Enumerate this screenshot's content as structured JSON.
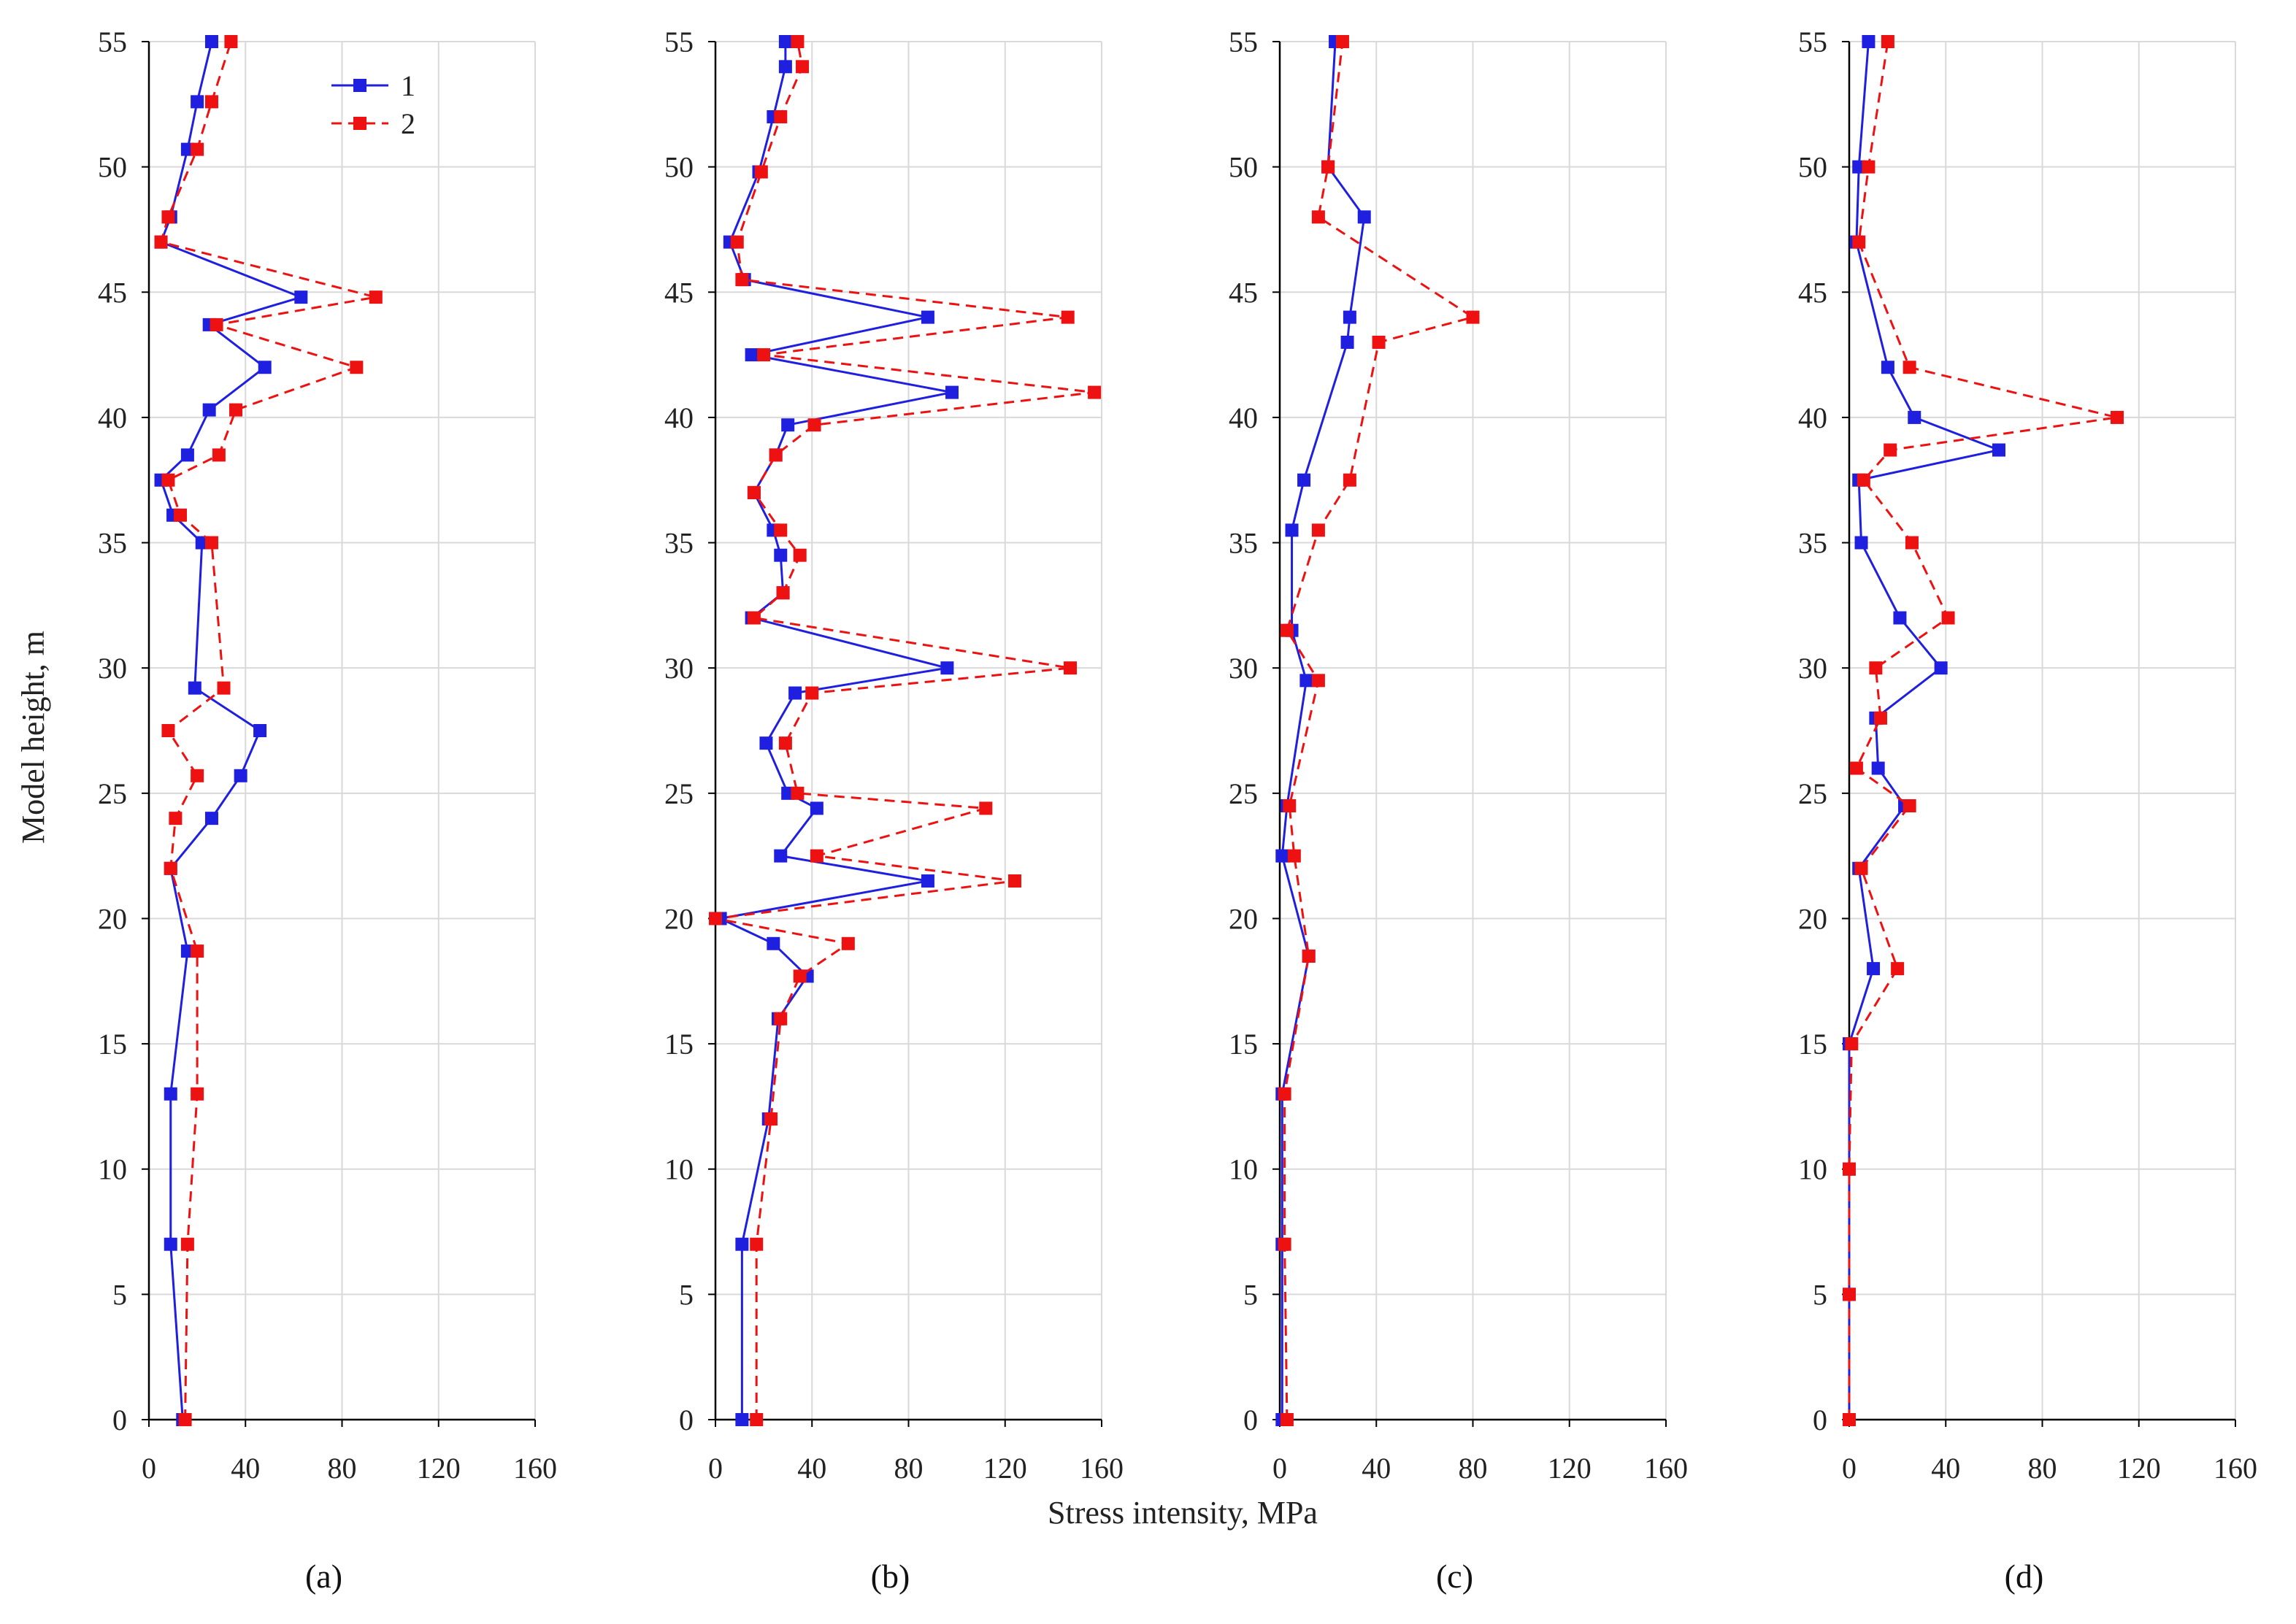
{
  "figure": {
    "ylabel": "Model height, m",
    "xlabel": "Stress intensity, MPa",
    "colors": {
      "series1": "#1f1fe0",
      "series2": "#ee1111",
      "grid": "#d9d9d9",
      "axis": "#000000"
    }
  },
  "chart_data": [
    {
      "type": "line",
      "panel": "(a)",
      "xlim": [
        0,
        160
      ],
      "ylim": [
        0,
        55
      ],
      "xticks": [
        "0",
        "40",
        "80",
        "120",
        "160"
      ],
      "yticks": [
        "0",
        "5",
        "10",
        "15",
        "20",
        "25",
        "30",
        "35",
        "40",
        "45",
        "50",
        "55"
      ],
      "grid": true,
      "legend": {
        "position": "top-right",
        "entries": [
          "1",
          "2"
        ]
      },
      "series": [
        {
          "name": "1",
          "style": "solid",
          "points": [
            [
              14,
              0
            ],
            [
              9,
              7
            ],
            [
              9,
              13
            ],
            [
              16,
              18.7
            ],
            [
              9,
              22
            ],
            [
              26,
              24
            ],
            [
              38,
              25.7
            ],
            [
              46,
              27.5
            ],
            [
              19,
              29.2
            ],
            [
              22,
              35
            ],
            [
              10,
              36.1
            ],
            [
              5,
              37.5
            ],
            [
              16,
              38.5
            ],
            [
              25,
              40.3
            ],
            [
              48,
              42
            ],
            [
              25,
              43.7
            ],
            [
              63,
              44.8
            ],
            [
              5,
              47
            ],
            [
              9,
              48
            ],
            [
              16,
              50.7
            ],
            [
              20,
              52.6
            ],
            [
              26,
              55
            ]
          ]
        },
        {
          "name": "2",
          "style": "dashed",
          "points": [
            [
              15,
              0
            ],
            [
              16,
              7
            ],
            [
              20,
              13
            ],
            [
              20,
              18.7
            ],
            [
              9,
              22
            ],
            [
              11,
              24
            ],
            [
              20,
              25.7
            ],
            [
              8,
              27.5
            ],
            [
              31,
              29.2
            ],
            [
              26,
              35
            ],
            [
              13,
              36.1
            ],
            [
              8,
              37.5
            ],
            [
              29,
              38.5
            ],
            [
              36,
              40.3
            ],
            [
              86,
              42
            ],
            [
              28,
              43.7
            ],
            [
              94,
              44.8
            ],
            [
              5,
              47
            ],
            [
              8,
              48
            ],
            [
              20,
              50.7
            ],
            [
              26,
              52.6
            ],
            [
              34,
              55
            ]
          ]
        }
      ]
    },
    {
      "type": "line",
      "panel": "(b)",
      "xlim": [
        0,
        160
      ],
      "ylim": [
        0,
        55
      ],
      "xticks": [
        "0",
        "40",
        "80",
        "120",
        "160"
      ],
      "yticks": [
        "0",
        "5",
        "10",
        "15",
        "20",
        "25",
        "30",
        "35",
        "40",
        "45",
        "50",
        "55"
      ],
      "grid": true,
      "series": [
        {
          "name": "1",
          "style": "solid",
          "points": [
            [
              11,
              0
            ],
            [
              11,
              7
            ],
            [
              22,
              12
            ],
            [
              26,
              16
            ],
            [
              38,
              17.7
            ],
            [
              24,
              19
            ],
            [
              2,
              20
            ],
            [
              88,
              21.5
            ],
            [
              27,
              22.5
            ],
            [
              42,
              24.4
            ],
            [
              30,
              25
            ],
            [
              21,
              27
            ],
            [
              33,
              29
            ],
            [
              96,
              30
            ],
            [
              15,
              32
            ],
            [
              28,
              33
            ],
            [
              27,
              34.5
            ],
            [
              24,
              35.5
            ],
            [
              16,
              37
            ],
            [
              25,
              38.5
            ],
            [
              30,
              39.7
            ],
            [
              98,
              41
            ],
            [
              15,
              42.5
            ],
            [
              88,
              44
            ],
            [
              12,
              45.5
            ],
            [
              6,
              47
            ],
            [
              18,
              49.8
            ],
            [
              24,
              52
            ],
            [
              29,
              54
            ],
            [
              29,
              55
            ]
          ]
        },
        {
          "name": "2",
          "style": "dashed",
          "points": [
            [
              17,
              0
            ],
            [
              17,
              7
            ],
            [
              23,
              12
            ],
            [
              27,
              16
            ],
            [
              35,
              17.7
            ],
            [
              55,
              19
            ],
            [
              0,
              20
            ],
            [
              124,
              21.5
            ],
            [
              42,
              22.5
            ],
            [
              112,
              24.4
            ],
            [
              34,
              25
            ],
            [
              29,
              27
            ],
            [
              40,
              29
            ],
            [
              147,
              30
            ],
            [
              16,
              32
            ],
            [
              28,
              33
            ],
            [
              35,
              34.5
            ],
            [
              27,
              35.5
            ],
            [
              16,
              37
            ],
            [
              25,
              38.5
            ],
            [
              41,
              39.7
            ],
            [
              157,
              41
            ],
            [
              20,
              42.5
            ],
            [
              146,
              44
            ],
            [
              11,
              45.5
            ],
            [
              9,
              47
            ],
            [
              19,
              49.8
            ],
            [
              27,
              52
            ],
            [
              36,
              54
            ],
            [
              34,
              55
            ]
          ]
        }
      ]
    },
    {
      "type": "line",
      "panel": "(c)",
      "xlim": [
        0,
        160
      ],
      "ylim": [
        0,
        55
      ],
      "xticks": [
        "0",
        "40",
        "80",
        "120",
        "160"
      ],
      "yticks": [
        "0",
        "5",
        "10",
        "15",
        "20",
        "25",
        "30",
        "35",
        "40",
        "45",
        "50",
        "55"
      ],
      "grid": true,
      "series": [
        {
          "name": "1",
          "style": "solid",
          "points": [
            [
              1,
              0
            ],
            [
              1,
              7
            ],
            [
              1,
              13
            ],
            [
              12,
              18.5
            ],
            [
              1,
              22.5
            ],
            [
              3,
              24.5
            ],
            [
              11,
              29.5
            ],
            [
              5,
              31.5
            ],
            [
              5,
              35.5
            ],
            [
              10,
              37.5
            ],
            [
              28,
              43
            ],
            [
              29,
              44
            ],
            [
              35,
              48
            ],
            [
              20,
              50
            ],
            [
              23,
              55
            ]
          ]
        },
        {
          "name": "2",
          "style": "dashed",
          "points": [
            [
              3,
              0
            ],
            [
              2,
              7
            ],
            [
              2,
              13
            ],
            [
              12,
              18.5
            ],
            [
              6,
              22.5
            ],
            [
              4,
              24.5
            ],
            [
              16,
              29.5
            ],
            [
              3,
              31.5
            ],
            [
              16,
              35.5
            ],
            [
              29,
              37.5
            ],
            [
              41,
              43
            ],
            [
              80,
              44
            ],
            [
              16,
              48
            ],
            [
              20,
              50
            ],
            [
              26,
              55
            ]
          ]
        }
      ]
    },
    {
      "type": "line",
      "panel": "(d)",
      "xlim": [
        0,
        160
      ],
      "ylim": [
        0,
        55
      ],
      "xticks": [
        "0",
        "40",
        "80",
        "120",
        "160"
      ],
      "yticks": [
        "0",
        "5",
        "10",
        "15",
        "20",
        "25",
        "30",
        "35",
        "40",
        "45",
        "50",
        "55"
      ],
      "grid": true,
      "series": [
        {
          "name": "1",
          "style": "solid",
          "points": [
            [
              0,
              0
            ],
            [
              0,
              5
            ],
            [
              0,
              10
            ],
            [
              0,
              15
            ],
            [
              10,
              18
            ],
            [
              4,
              22
            ],
            [
              23,
              24.5
            ],
            [
              12,
              26
            ],
            [
              11,
              28
            ],
            [
              38,
              30
            ],
            [
              21,
              32
            ],
            [
              5,
              35
            ],
            [
              4,
              37.5
            ],
            [
              62,
              38.7
            ],
            [
              27,
              40
            ],
            [
              16,
              42
            ],
            [
              3,
              47
            ],
            [
              4,
              50
            ],
            [
              8,
              55
            ]
          ]
        },
        {
          "name": "2",
          "style": "dashed",
          "points": [
            [
              0,
              0
            ],
            [
              0,
              5
            ],
            [
              0,
              10
            ],
            [
              1,
              15
            ],
            [
              20,
              18
            ],
            [
              5,
              22
            ],
            [
              25,
              24.5
            ],
            [
              3,
              26
            ],
            [
              13,
              28
            ],
            [
              11,
              30
            ],
            [
              41,
              32
            ],
            [
              26,
              35
            ],
            [
              6,
              37.5
            ],
            [
              17,
              38.7
            ],
            [
              111,
              40
            ],
            [
              25,
              42
            ],
            [
              4,
              47
            ],
            [
              8,
              50
            ],
            [
              16,
              55
            ]
          ]
        }
      ]
    }
  ]
}
